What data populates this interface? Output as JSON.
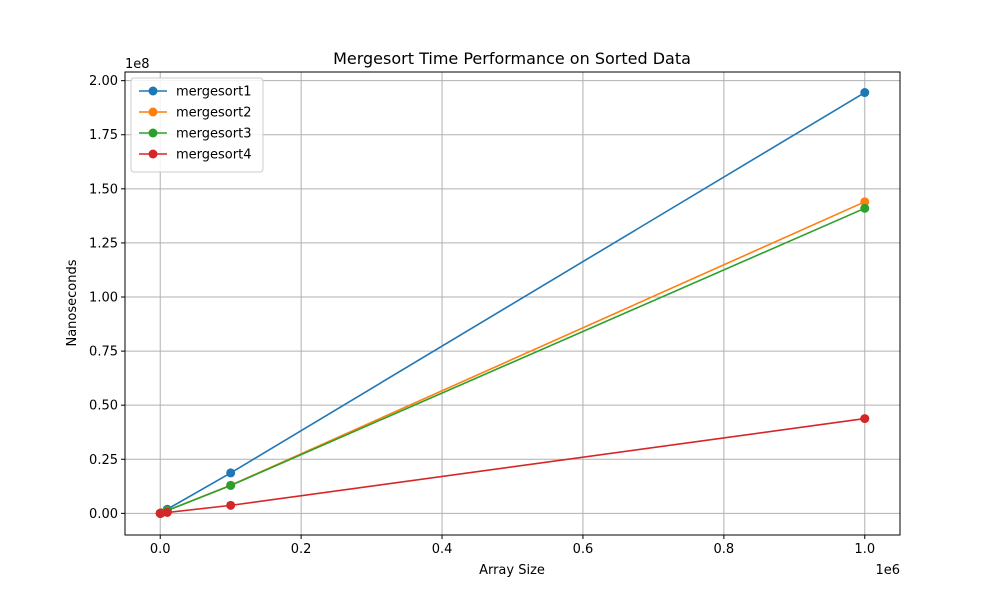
{
  "chart_data": {
    "type": "line",
    "title": "Mergesort Time Performance on Sorted Data",
    "xlabel": "Array Size",
    "ylabel": "Nanoseconds",
    "x_offset_text": "1e6",
    "y_offset_text": "1e8",
    "xlim": [
      -50000,
      1050000
    ],
    "ylim": [
      -10000000,
      204000000
    ],
    "x_ticks": [
      0,
      200000,
      400000,
      600000,
      800000,
      1000000
    ],
    "x_tick_labels": [
      "0.0",
      "0.2",
      "0.4",
      "0.6",
      "0.8",
      "1.0"
    ],
    "y_ticks": [
      0,
      25000000,
      50000000,
      75000000,
      100000000,
      125000000,
      150000000,
      175000000,
      200000000
    ],
    "y_tick_labels": [
      "0.00",
      "0.25",
      "0.50",
      "0.75",
      "1.00",
      "1.25",
      "1.50",
      "1.75",
      "2.00"
    ],
    "grid": true,
    "legend_position": "top-left",
    "x": [
      10,
      100,
      1000,
      10000,
      100000,
      1000000
    ],
    "series": [
      {
        "name": "mergesort1",
        "color": "#1f77b4",
        "values": [
          2000,
          20000,
          200000,
          1900000,
          18700000,
          194500000
        ]
      },
      {
        "name": "mergesort2",
        "color": "#ff7f0e",
        "values": [
          1500,
          15000,
          140000,
          1300000,
          13000000,
          144000000
        ]
      },
      {
        "name": "mergesort3",
        "color": "#2ca02c",
        "values": [
          1500,
          14000,
          130000,
          1300000,
          12900000,
          141000000
        ]
      },
      {
        "name": "mergesort4",
        "color": "#d62728",
        "values": [
          500,
          4000,
          40000,
          400000,
          3700000,
          43800000
        ]
      }
    ]
  }
}
